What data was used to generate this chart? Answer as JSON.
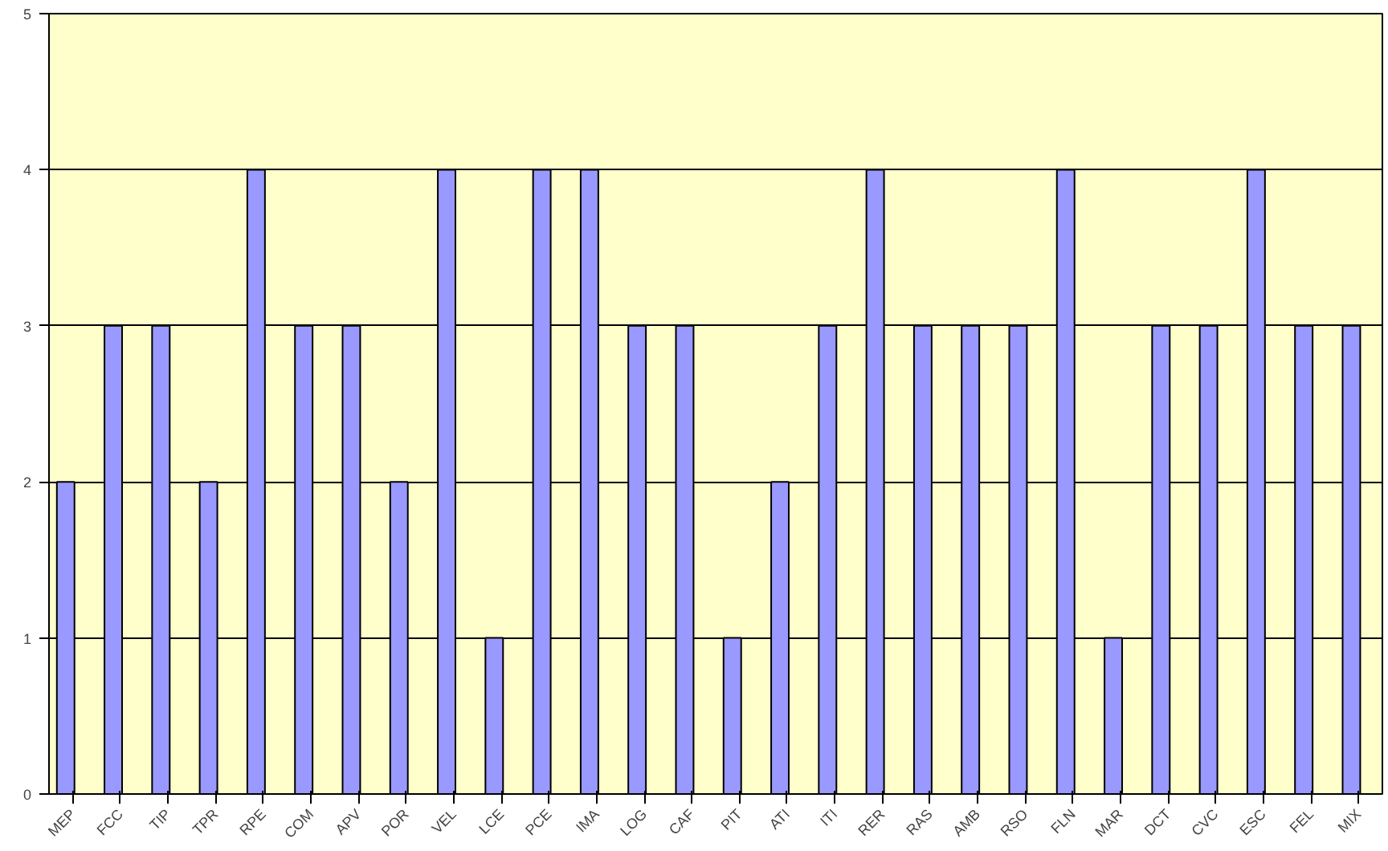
{
  "chart_data": {
    "type": "bar",
    "categories": [
      "MEP",
      "FCC",
      "TIP",
      "TPR",
      "RPE",
      "COM",
      "APV",
      "POR",
      "VEL",
      "LCE",
      "PCE",
      "IMA",
      "LOG",
      "CAF",
      "PIT",
      "ATI",
      "ITI",
      "RER",
      "RAS",
      "AMB",
      "RSO",
      "FLN",
      "MAR",
      "DCT",
      "CVC",
      "ESC",
      "FEL",
      "MIX"
    ],
    "values": [
      2,
      3,
      3,
      2,
      4,
      3,
      3,
      2,
      4,
      1,
      4,
      4,
      3,
      3,
      1,
      2,
      3,
      4,
      3,
      3,
      3,
      4,
      1,
      3,
      3,
      4,
      3,
      3
    ],
    "color": "#9999ff",
    "ylim": [
      0,
      5
    ],
    "yticks": [
      0,
      1,
      2,
      3,
      4,
      5
    ],
    "grid": "y"
  }
}
